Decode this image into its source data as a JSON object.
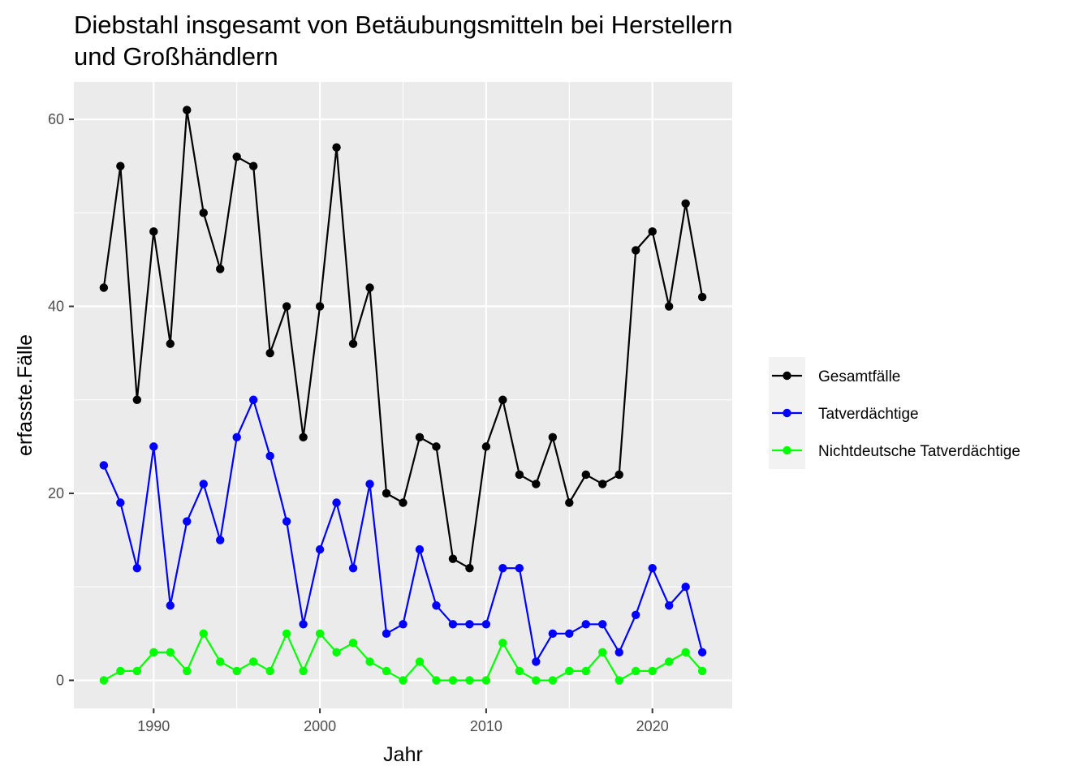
{
  "chart_data": {
    "type": "line",
    "title_lines": [
      "Diebstahl insgesamt von Betäubungsmitteln bei Herstellern",
      "und Großhändlern"
    ],
    "xlabel": "Jahr",
    "ylabel": "erfasste.Fälle",
    "xlim": [
      1985.2,
      2024.8
    ],
    "ylim": [
      -3,
      64
    ],
    "x_ticks": [
      1990,
      2000,
      2010,
      2020
    ],
    "y_ticks": [
      0,
      20,
      40,
      60
    ],
    "grid": true,
    "legend_position": "right",
    "x": [
      1987,
      1988,
      1989,
      1990,
      1991,
      1992,
      1993,
      1994,
      1995,
      1996,
      1997,
      1998,
      1999,
      2000,
      2001,
      2002,
      2003,
      2004,
      2005,
      2006,
      2007,
      2008,
      2009,
      2010,
      2011,
      2012,
      2013,
      2014,
      2015,
      2016,
      2017,
      2018,
      2019,
      2020,
      2021,
      2022,
      2023
    ],
    "series": [
      {
        "name": "Gesamtfälle",
        "color": "#000000",
        "values": [
          42,
          55,
          30,
          48,
          36,
          61,
          50,
          44,
          56,
          55,
          35,
          40,
          26,
          40,
          57,
          36,
          42,
          20,
          19,
          26,
          25,
          13,
          12,
          25,
          30,
          22,
          21,
          26,
          19,
          22,
          21,
          22,
          46,
          48,
          40,
          51,
          41
        ]
      },
      {
        "name": "Tatverdächtige",
        "color": "#0000ff",
        "values": [
          23,
          19,
          12,
          25,
          8,
          17,
          21,
          15,
          26,
          30,
          24,
          17,
          6,
          14,
          19,
          12,
          21,
          5,
          6,
          14,
          8,
          6,
          6,
          6,
          12,
          12,
          2,
          5,
          5,
          6,
          6,
          3,
          7,
          12,
          8,
          10,
          3
        ]
      },
      {
        "name": "Nichtdeutsche Tatverdächtige",
        "color": "#00ff00",
        "values": [
          0,
          1,
          1,
          3,
          3,
          1,
          5,
          2,
          1,
          2,
          1,
          5,
          1,
          5,
          3,
          4,
          2,
          1,
          0,
          2,
          0,
          0,
          0,
          0,
          4,
          1,
          0,
          0,
          1,
          1,
          3,
          0,
          1,
          1,
          2,
          3,
          1
        ]
      }
    ]
  }
}
